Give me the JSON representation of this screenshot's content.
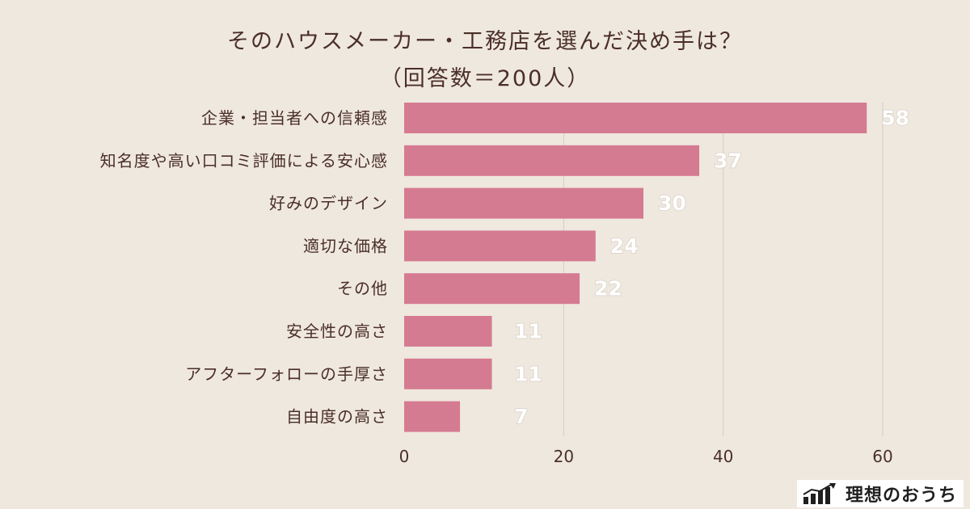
{
  "chart_data": {
    "type": "bar",
    "orientation": "horizontal",
    "title": "そのハウスメーカー・工務店を選んだ決め手は？",
    "subtitle": "（回答数＝200人）",
    "categories": [
      "企業・担当者への信頼感",
      "知名度や高い口コミ評価による安心感",
      "好みのデザイン",
      "適切な価格",
      "その他",
      "安全性の高さ",
      "アフターフォローの手厚さ",
      "自由度の高さ"
    ],
    "values": [
      58,
      37,
      30,
      24,
      22,
      11,
      11,
      7
    ],
    "xlim": [
      0,
      60
    ],
    "xticks": [
      0,
      20,
      40,
      60
    ],
    "xlabel": "",
    "ylabel": "",
    "grid": true,
    "colors": {
      "bar": "#d57b91",
      "background": "#efe8df",
      "text": "#4a2f28",
      "grid": "#d4ccc4",
      "value_label": "#ffffff"
    }
  },
  "branding": {
    "logo_text": "理想のおうち",
    "logo_icon": "rising-bars-icon"
  }
}
